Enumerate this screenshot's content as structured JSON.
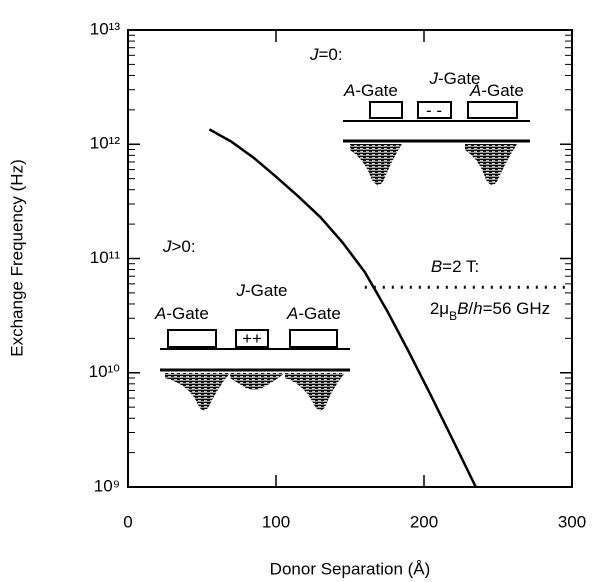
{
  "chart_data": {
    "type": "line",
    "x_label": "Donor Separation (Å)",
    "y_label": "Exchange Frequency (Hz)",
    "xlim": [
      0,
      300
    ],
    "ylim": [
      1000000000.0,
      10000000000000.0
    ],
    "log_y": true,
    "xticks": [
      0,
      100,
      200,
      300
    ],
    "yticks": [
      {
        "value": 1000000000.0,
        "label": "10⁹"
      },
      {
        "value": 10000000000.0,
        "label": "10¹⁰"
      },
      {
        "value": 100000000000.0,
        "label": "10¹¹"
      },
      {
        "value": 1000000000000.0,
        "label": "10¹²"
      },
      {
        "value": 10000000000000.0,
        "label": "10¹³"
      }
    ],
    "series": [
      {
        "color": "#000000",
        "x": [
          55,
          70,
          85,
          100,
          115,
          130,
          145,
          160,
          175,
          190,
          205,
          220,
          235
        ],
        "values": [
          1350000000000.0,
          1050000000000.0,
          760000000000.0,
          520000000000.0,
          350000000000.0,
          230000000000.0,
          138000000000.0,
          76000000000.0,
          35000000000.0,
          15000000000.0,
          6200000000.0,
          2500000000.0,
          1000000000.0
        ]
      }
    ],
    "reference_line": {
      "value": 56000000000.0,
      "x": [
        160,
        300
      ],
      "style": "dotted"
    }
  },
  "annotations": [
    {
      "parts": [
        {
          "text": "J",
          "style": "italic"
        },
        {
          "text": "=0:",
          "style": "normal"
        }
      ]
    },
    {
      "parts": [
        {
          "text": "J",
          "style": "italic"
        },
        {
          "text": "-Gate",
          "style": "normal"
        }
      ]
    },
    {
      "parts": [
        {
          "text": "A",
          "style": "italic"
        },
        {
          "text": "-Gate",
          "style": "normal"
        }
      ]
    },
    {
      "parts": [
        {
          "text": "A",
          "style": "italic"
        },
        {
          "text": "-Gate",
          "style": "normal"
        }
      ]
    },
    {
      "parts": [
        {
          "text": "- -",
          "style": "normal"
        }
      ]
    },
    {
      "parts": [
        {
          "text": "J",
          "style": "italic"
        },
        {
          "text": ">0:",
          "style": "normal"
        }
      ]
    },
    {
      "parts": [
        {
          "text": "J",
          "style": "italic"
        },
        {
          "text": "-Gate",
          "style": "normal"
        }
      ]
    },
    {
      "parts": [
        {
          "text": "A",
          "style": "italic"
        },
        {
          "text": "-Gate",
          "style": "normal"
        }
      ]
    },
    {
      "parts": [
        {
          "text": "A",
          "style": "italic"
        },
        {
          "text": "-Gate",
          "style": "normal"
        }
      ]
    },
    {
      "parts": [
        {
          "text": "++",
          "style": "normal"
        }
      ]
    },
    {
      "parts": [
        {
          "text": "B",
          "style": "italic"
        },
        {
          "text": "=2 T:",
          "style": "normal"
        }
      ]
    },
    {
      "parts": [
        {
          "text": "2μ",
          "style": "normal"
        },
        {
          "text": "B",
          "style": "sub"
        },
        {
          "text": "B",
          "style": "italic"
        },
        {
          "text": "/",
          "style": "normal"
        },
        {
          "text": "h",
          "style": "italic"
        },
        {
          "text": "=56 GHz",
          "style": "normal"
        }
      ]
    }
  ]
}
